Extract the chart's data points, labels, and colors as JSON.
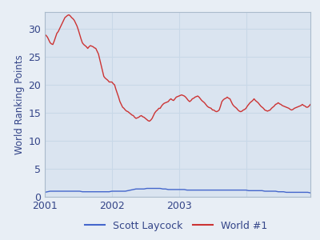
{
  "title": "",
  "ylabel": "World Ranking Points",
  "xlabel": "",
  "plot_bg_color": "#dae4f0",
  "figure_bg_color": "#e8eef5",
  "laycock_color": "#4466cc",
  "world1_color": "#cc3333",
  "laycock_label": "Scott Laycock",
  "world1_label": "World #1",
  "ylim": [
    0,
    33
  ],
  "yticks": [
    0,
    5,
    10,
    15,
    20,
    25,
    30
  ],
  "linewidth": 1.0,
  "world1_data": [
    [
      0.0,
      29.0
    ],
    [
      0.02,
      28.8
    ],
    [
      0.04,
      28.5
    ],
    [
      0.06,
      28.0
    ],
    [
      0.08,
      27.5
    ],
    [
      0.1,
      27.3
    ],
    [
      0.12,
      27.2
    ],
    [
      0.14,
      27.8
    ],
    [
      0.16,
      28.5
    ],
    [
      0.18,
      29.2
    ],
    [
      0.2,
      29.5
    ],
    [
      0.22,
      30.0
    ],
    [
      0.24,
      30.5
    ],
    [
      0.26,
      31.0
    ],
    [
      0.28,
      31.5
    ],
    [
      0.3,
      32.0
    ],
    [
      0.32,
      32.2
    ],
    [
      0.34,
      32.4
    ],
    [
      0.36,
      32.5
    ],
    [
      0.38,
      32.3
    ],
    [
      0.4,
      32.0
    ],
    [
      0.42,
      31.8
    ],
    [
      0.44,
      31.5
    ],
    [
      0.46,
      31.0
    ],
    [
      0.48,
      30.5
    ],
    [
      0.5,
      29.8
    ],
    [
      0.52,
      29.0
    ],
    [
      0.54,
      28.2
    ],
    [
      0.56,
      27.5
    ],
    [
      0.58,
      27.2
    ],
    [
      0.6,
      27.0
    ],
    [
      0.62,
      26.8
    ],
    [
      0.64,
      26.5
    ],
    [
      0.66,
      26.8
    ],
    [
      0.68,
      27.0
    ],
    [
      0.7,
      26.9
    ],
    [
      0.72,
      26.8
    ],
    [
      0.74,
      26.6
    ],
    [
      0.76,
      26.5
    ],
    [
      0.78,
      26.0
    ],
    [
      0.8,
      25.5
    ],
    [
      0.82,
      24.5
    ],
    [
      0.84,
      23.5
    ],
    [
      0.86,
      22.5
    ],
    [
      0.88,
      21.5
    ],
    [
      0.9,
      21.2
    ],
    [
      0.92,
      21.0
    ],
    [
      0.94,
      20.8
    ],
    [
      0.96,
      20.5
    ],
    [
      0.98,
      20.5
    ],
    [
      1.0,
      20.5
    ],
    [
      1.02,
      20.2
    ],
    [
      1.04,
      20.0
    ],
    [
      1.06,
      19.2
    ],
    [
      1.08,
      18.5
    ],
    [
      1.1,
      17.8
    ],
    [
      1.12,
      17.0
    ],
    [
      1.14,
      16.5
    ],
    [
      1.16,
      16.0
    ],
    [
      1.18,
      15.8
    ],
    [
      1.2,
      15.5
    ],
    [
      1.22,
      15.3
    ],
    [
      1.24,
      15.2
    ],
    [
      1.26,
      15.0
    ],
    [
      1.28,
      14.8
    ],
    [
      1.3,
      14.6
    ],
    [
      1.32,
      14.5
    ],
    [
      1.34,
      14.2
    ],
    [
      1.36,
      14.0
    ],
    [
      1.38,
      14.1
    ],
    [
      1.4,
      14.2
    ],
    [
      1.42,
      14.4
    ],
    [
      1.44,
      14.5
    ],
    [
      1.46,
      14.3
    ],
    [
      1.48,
      14.2
    ],
    [
      1.5,
      14.0
    ],
    [
      1.52,
      13.8
    ],
    [
      1.54,
      13.6
    ],
    [
      1.56,
      13.5
    ],
    [
      1.58,
      13.7
    ],
    [
      1.6,
      14.0
    ],
    [
      1.62,
      14.5
    ],
    [
      1.64,
      15.0
    ],
    [
      1.66,
      15.3
    ],
    [
      1.68,
      15.5
    ],
    [
      1.7,
      15.8
    ],
    [
      1.72,
      15.8
    ],
    [
      1.74,
      16.2
    ],
    [
      1.76,
      16.5
    ],
    [
      1.78,
      16.7
    ],
    [
      1.8,
      16.8
    ],
    [
      1.82,
      16.9
    ],
    [
      1.84,
      17.0
    ],
    [
      1.86,
      17.3
    ],
    [
      1.88,
      17.5
    ],
    [
      1.9,
      17.3
    ],
    [
      1.92,
      17.2
    ],
    [
      1.94,
      17.5
    ],
    [
      1.96,
      17.8
    ],
    [
      1.98,
      17.9
    ],
    [
      2.0,
      18.0
    ],
    [
      2.02,
      18.1
    ],
    [
      2.04,
      18.2
    ],
    [
      2.06,
      18.1
    ],
    [
      2.08,
      18.0
    ],
    [
      2.1,
      17.8
    ],
    [
      2.12,
      17.5
    ],
    [
      2.14,
      17.2
    ],
    [
      2.16,
      17.0
    ],
    [
      2.18,
      17.2
    ],
    [
      2.2,
      17.5
    ],
    [
      2.22,
      17.6
    ],
    [
      2.24,
      17.8
    ],
    [
      2.26,
      17.9
    ],
    [
      2.28,
      18.0
    ],
    [
      2.3,
      17.8
    ],
    [
      2.32,
      17.5
    ],
    [
      2.34,
      17.2
    ],
    [
      2.36,
      17.0
    ],
    [
      2.38,
      16.8
    ],
    [
      2.4,
      16.5
    ],
    [
      2.42,
      16.2
    ],
    [
      2.44,
      16.0
    ],
    [
      2.46,
      15.9
    ],
    [
      2.48,
      15.8
    ],
    [
      2.5,
      15.5
    ],
    [
      2.52,
      15.5
    ],
    [
      2.54,
      15.3
    ],
    [
      2.56,
      15.2
    ],
    [
      2.58,
      15.3
    ],
    [
      2.6,
      15.5
    ],
    [
      2.62,
      16.2
    ],
    [
      2.64,
      17.0
    ],
    [
      2.66,
      17.3
    ],
    [
      2.68,
      17.5
    ],
    [
      2.7,
      17.6
    ],
    [
      2.72,
      17.8
    ],
    [
      2.74,
      17.6
    ],
    [
      2.76,
      17.5
    ],
    [
      2.78,
      17.0
    ],
    [
      2.8,
      16.5
    ],
    [
      2.82,
      16.2
    ],
    [
      2.84,
      16.0
    ],
    [
      2.86,
      15.8
    ],
    [
      2.88,
      15.5
    ],
    [
      2.9,
      15.3
    ],
    [
      2.92,
      15.2
    ],
    [
      2.94,
      15.3
    ],
    [
      2.96,
      15.5
    ],
    [
      2.98,
      15.6
    ],
    [
      3.0,
      15.8
    ],
    [
      3.02,
      16.2
    ],
    [
      3.04,
      16.5
    ],
    [
      3.06,
      16.8
    ],
    [
      3.08,
      17.0
    ],
    [
      3.1,
      17.2
    ],
    [
      3.12,
      17.5
    ],
    [
      3.14,
      17.2
    ],
    [
      3.16,
      17.0
    ],
    [
      3.18,
      16.8
    ],
    [
      3.2,
      16.5
    ],
    [
      3.22,
      16.2
    ],
    [
      3.24,
      16.0
    ],
    [
      3.26,
      15.8
    ],
    [
      3.28,
      15.5
    ],
    [
      3.3,
      15.4
    ],
    [
      3.32,
      15.3
    ],
    [
      3.34,
      15.4
    ],
    [
      3.36,
      15.5
    ],
    [
      3.38,
      15.8
    ],
    [
      3.4,
      16.0
    ],
    [
      3.42,
      16.2
    ],
    [
      3.44,
      16.5
    ],
    [
      3.46,
      16.6
    ],
    [
      3.48,
      16.8
    ],
    [
      3.5,
      16.6
    ],
    [
      3.52,
      16.5
    ],
    [
      3.54,
      16.3
    ],
    [
      3.56,
      16.2
    ],
    [
      3.58,
      16.1
    ],
    [
      3.6,
      16.0
    ],
    [
      3.62,
      15.9
    ],
    [
      3.64,
      15.8
    ],
    [
      3.66,
      15.6
    ],
    [
      3.68,
      15.5
    ],
    [
      3.7,
      15.6
    ],
    [
      3.72,
      15.8
    ],
    [
      3.74,
      15.9
    ],
    [
      3.76,
      16.0
    ],
    [
      3.78,
      16.1
    ],
    [
      3.8,
      16.2
    ],
    [
      3.82,
      16.3
    ],
    [
      3.84,
      16.5
    ],
    [
      3.86,
      16.3
    ],
    [
      3.88,
      16.2
    ],
    [
      3.9,
      16.0
    ],
    [
      3.92,
      16.0
    ],
    [
      3.94,
      16.2
    ],
    [
      3.96,
      16.5
    ]
  ],
  "laycock_data": [
    [
      0.0,
      0.8
    ],
    [
      0.04,
      0.9
    ],
    [
      0.08,
      1.0
    ],
    [
      0.12,
      1.0
    ],
    [
      0.16,
      1.0
    ],
    [
      0.2,
      1.0
    ],
    [
      0.24,
      1.0
    ],
    [
      0.28,
      1.0
    ],
    [
      0.32,
      1.0
    ],
    [
      0.36,
      1.0
    ],
    [
      0.4,
      1.0
    ],
    [
      0.44,
      1.0
    ],
    [
      0.48,
      1.0
    ],
    [
      0.52,
      1.0
    ],
    [
      0.56,
      0.9
    ],
    [
      0.6,
      0.9
    ],
    [
      0.64,
      0.9
    ],
    [
      0.68,
      0.9
    ],
    [
      0.72,
      0.9
    ],
    [
      0.76,
      0.9
    ],
    [
      0.8,
      0.9
    ],
    [
      0.84,
      0.9
    ],
    [
      0.88,
      0.9
    ],
    [
      0.92,
      0.9
    ],
    [
      0.96,
      0.9
    ],
    [
      1.0,
      1.0
    ],
    [
      1.04,
      1.0
    ],
    [
      1.08,
      1.0
    ],
    [
      1.12,
      1.0
    ],
    [
      1.16,
      1.0
    ],
    [
      1.2,
      1.0
    ],
    [
      1.24,
      1.1
    ],
    [
      1.28,
      1.2
    ],
    [
      1.32,
      1.3
    ],
    [
      1.36,
      1.4
    ],
    [
      1.4,
      1.4
    ],
    [
      1.44,
      1.4
    ],
    [
      1.48,
      1.4
    ],
    [
      1.52,
      1.5
    ],
    [
      1.56,
      1.5
    ],
    [
      1.6,
      1.5
    ],
    [
      1.64,
      1.5
    ],
    [
      1.68,
      1.5
    ],
    [
      1.72,
      1.5
    ],
    [
      1.76,
      1.4
    ],
    [
      1.8,
      1.4
    ],
    [
      1.84,
      1.3
    ],
    [
      1.88,
      1.3
    ],
    [
      1.92,
      1.3
    ],
    [
      1.96,
      1.3
    ],
    [
      2.0,
      1.3
    ],
    [
      2.04,
      1.3
    ],
    [
      2.08,
      1.3
    ],
    [
      2.12,
      1.2
    ],
    [
      2.16,
      1.2
    ],
    [
      2.2,
      1.2
    ],
    [
      2.24,
      1.2
    ],
    [
      2.28,
      1.2
    ],
    [
      2.32,
      1.2
    ],
    [
      2.36,
      1.2
    ],
    [
      2.4,
      1.2
    ],
    [
      2.44,
      1.2
    ],
    [
      2.48,
      1.2
    ],
    [
      2.52,
      1.2
    ],
    [
      2.56,
      1.2
    ],
    [
      2.6,
      1.2
    ],
    [
      2.64,
      1.2
    ],
    [
      2.68,
      1.2
    ],
    [
      2.72,
      1.2
    ],
    [
      2.76,
      1.2
    ],
    [
      2.8,
      1.2
    ],
    [
      2.84,
      1.2
    ],
    [
      2.88,
      1.2
    ],
    [
      2.92,
      1.2
    ],
    [
      2.96,
      1.2
    ],
    [
      3.0,
      1.2
    ],
    [
      3.04,
      1.1
    ],
    [
      3.08,
      1.1
    ],
    [
      3.12,
      1.1
    ],
    [
      3.16,
      1.1
    ],
    [
      3.2,
      1.1
    ],
    [
      3.24,
      1.1
    ],
    [
      3.28,
      1.0
    ],
    [
      3.32,
      1.0
    ],
    [
      3.36,
      1.0
    ],
    [
      3.4,
      1.0
    ],
    [
      3.44,
      1.0
    ],
    [
      3.48,
      0.9
    ],
    [
      3.52,
      0.9
    ],
    [
      3.56,
      0.9
    ],
    [
      3.6,
      0.8
    ],
    [
      3.64,
      0.8
    ],
    [
      3.68,
      0.8
    ],
    [
      3.72,
      0.8
    ],
    [
      3.76,
      0.8
    ],
    [
      3.8,
      0.8
    ],
    [
      3.84,
      0.8
    ],
    [
      3.88,
      0.8
    ],
    [
      3.92,
      0.8
    ],
    [
      3.96,
      0.7
    ]
  ],
  "xtick_positions": [
    0.0,
    1.0,
    2.0,
    3.0
  ],
  "xtick_labels": [
    "2001",
    "2002",
    "2003",
    ""
  ],
  "grid_color": "#c8d8e8",
  "spine_color": "#aabbcc",
  "tick_color": "#334488",
  "label_color": "#334488",
  "ylabel_fontsize": 8.5,
  "tick_fontsize": 9
}
